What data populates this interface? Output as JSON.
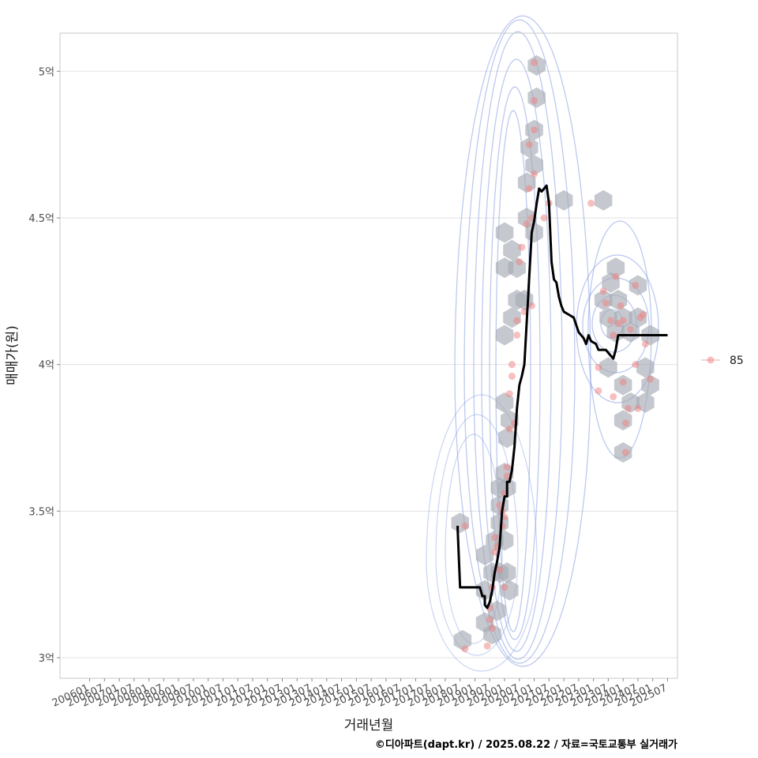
{
  "chart_data": {
    "type": "scatter",
    "xlabel": "거래년월",
    "ylabel": "매매가(원)",
    "caption": "©디아파트(dapt.kr) / 2025.08.22 / 자료=국토교통부 실거래가",
    "x_ticks": [
      "200601",
      "200607",
      "200701",
      "200707",
      "200801",
      "200807",
      "200901",
      "200907",
      "201001",
      "201007",
      "201101",
      "201107",
      "201201",
      "201207",
      "201301",
      "201307",
      "201401",
      "201407",
      "201501",
      "201507",
      "201601",
      "201607",
      "201701",
      "201707",
      "201801",
      "201807",
      "201901",
      "201907",
      "202001",
      "202007",
      "202101",
      "202107",
      "202201",
      "202207",
      "202301",
      "202307",
      "202401",
      "202407",
      "202501",
      "202507"
    ],
    "y_ticks": [
      {
        "value": 3.0,
        "label": "3억"
      },
      {
        "value": 3.5,
        "label": "3.5억"
      },
      {
        "value": 4.0,
        "label": "4억"
      },
      {
        "value": 4.5,
        "label": "4.5억"
      },
      {
        "value": 5.0,
        "label": "5억"
      }
    ],
    "ylim": [
      2.93,
      5.13
    ],
    "xlim_months": [
      "200501",
      "202511"
    ],
    "grid": true,
    "legend": {
      "position": "right",
      "entries": [
        {
          "label": "85",
          "color": "#f08080"
        }
      ]
    },
    "colors": {
      "points": "#f08080",
      "hex": "#a6aab4",
      "contour": "#7b96e0",
      "trend": "#000000"
    },
    "points": [
      {
        "x": "2018-09",
        "y": 3.45
      },
      {
        "x": "2018-09",
        "y": 3.03
      },
      {
        "x": "2019-06",
        "y": 3.04
      },
      {
        "x": "2019-07",
        "y": 3.17
      },
      {
        "x": "2019-07",
        "y": 3.13
      },
      {
        "x": "2019-08",
        "y": 3.1
      },
      {
        "x": "2019-08",
        "y": 3.24
      },
      {
        "x": "2019-09",
        "y": 3.36
      },
      {
        "x": "2019-09",
        "y": 3.41
      },
      {
        "x": "2019-10",
        "y": 3.38
      },
      {
        "x": "2019-11",
        "y": 3.3
      },
      {
        "x": "2019-11",
        "y": 3.52
      },
      {
        "x": "2019-12",
        "y": 3.45
      },
      {
        "x": "2019-12",
        "y": 3.5
      },
      {
        "x": "2020-01",
        "y": 3.48
      },
      {
        "x": "2020-01",
        "y": 3.56
      },
      {
        "x": "2020-01",
        "y": 3.24
      },
      {
        "x": "2020-02",
        "y": 3.62
      },
      {
        "x": "2020-02",
        "y": 3.65
      },
      {
        "x": "2020-03",
        "y": 3.78
      },
      {
        "x": "2020-03",
        "y": 3.9
      },
      {
        "x": "2020-04",
        "y": 3.96
      },
      {
        "x": "2020-04",
        "y": 4.0
      },
      {
        "x": "2020-05",
        "y": 3.8
      },
      {
        "x": "2020-06",
        "y": 4.1
      },
      {
        "x": "2020-06",
        "y": 4.15
      },
      {
        "x": "2020-07",
        "y": 4.35
      },
      {
        "x": "2020-08",
        "y": 4.4
      },
      {
        "x": "2020-09",
        "y": 4.18
      },
      {
        "x": "2020-10",
        "y": 4.48
      },
      {
        "x": "2020-11",
        "y": 4.6
      },
      {
        "x": "2020-11",
        "y": 4.75
      },
      {
        "x": "2020-12",
        "y": 4.2
      },
      {
        "x": "2020-12",
        "y": 4.5
      },
      {
        "x": "2021-01",
        "y": 4.65
      },
      {
        "x": "2021-01",
        "y": 4.8
      },
      {
        "x": "2021-01",
        "y": 4.9
      },
      {
        "x": "2021-01",
        "y": 5.03
      },
      {
        "x": "2021-05",
        "y": 4.5
      },
      {
        "x": "2021-07",
        "y": 4.55
      },
      {
        "x": "2022-12",
        "y": 4.55
      },
      {
        "x": "2023-03",
        "y": 3.99
      },
      {
        "x": "2023-03",
        "y": 3.91
      },
      {
        "x": "2023-05",
        "y": 4.25
      },
      {
        "x": "2023-06",
        "y": 4.21
      },
      {
        "x": "2023-08",
        "y": 4.15
      },
      {
        "x": "2023-09",
        "y": 4.1
      },
      {
        "x": "2023-09",
        "y": 3.89
      },
      {
        "x": "2023-10",
        "y": 4.3
      },
      {
        "x": "2023-11",
        "y": 4.14
      },
      {
        "x": "2023-12",
        "y": 4.2
      },
      {
        "x": "2024-01",
        "y": 3.94
      },
      {
        "x": "2024-01",
        "y": 4.15
      },
      {
        "x": "2024-02",
        "y": 3.7
      },
      {
        "x": "2024-02",
        "y": 3.8
      },
      {
        "x": "2024-03",
        "y": 3.85
      },
      {
        "x": "2024-04",
        "y": 4.12
      },
      {
        "x": "2024-06",
        "y": 4.27
      },
      {
        "x": "2024-06",
        "y": 4.0
      },
      {
        "x": "2024-07",
        "y": 3.85
      },
      {
        "x": "2024-08",
        "y": 4.16
      },
      {
        "x": "2024-09",
        "y": 4.17
      },
      {
        "x": "2024-10",
        "y": 4.07
      },
      {
        "x": "2024-12",
        "y": 3.95
      }
    ],
    "hexbins": [
      {
        "x": "2018-07",
        "y": 3.46
      },
      {
        "x": "2018-08",
        "y": 3.06
      },
      {
        "x": "2019-05",
        "y": 3.35
      },
      {
        "x": "2019-05",
        "y": 3.23
      },
      {
        "x": "2019-05",
        "y": 3.12
      },
      {
        "x": "2019-08",
        "y": 3.29
      },
      {
        "x": "2019-08",
        "y": 3.08
      },
      {
        "x": "2019-09",
        "y": 3.4
      },
      {
        "x": "2019-10",
        "y": 3.16
      },
      {
        "x": "2019-11",
        "y": 3.52
      },
      {
        "x": "2019-11",
        "y": 3.29
      },
      {
        "x": "2019-11",
        "y": 3.58
      },
      {
        "x": "2019-11",
        "y": 3.46
      },
      {
        "x": "2020-01",
        "y": 3.4
      },
      {
        "x": "2020-01",
        "y": 3.63
      },
      {
        "x": "2020-02",
        "y": 3.58
      },
      {
        "x": "2020-02",
        "y": 3.29
      },
      {
        "x": "2020-02",
        "y": 3.75
      },
      {
        "x": "2020-03",
        "y": 3.23
      },
      {
        "x": "2020-01",
        "y": 3.87
      },
      {
        "x": "2020-03",
        "y": 3.81
      },
      {
        "x": "2020-01",
        "y": 4.1
      },
      {
        "x": "2020-04",
        "y": 4.16
      },
      {
        "x": "2020-06",
        "y": 4.22
      },
      {
        "x": "2020-09",
        "y": 4.22
      },
      {
        "x": "2020-01",
        "y": 4.33
      },
      {
        "x": "2020-01",
        "y": 4.45
      },
      {
        "x": "2020-04",
        "y": 4.39
      },
      {
        "x": "2020-06",
        "y": 4.33
      },
      {
        "x": "2020-10",
        "y": 4.5
      },
      {
        "x": "2021-01",
        "y": 4.45
      },
      {
        "x": "2020-10",
        "y": 4.62
      },
      {
        "x": "2021-01",
        "y": 4.68
      },
      {
        "x": "2020-11",
        "y": 4.74
      },
      {
        "x": "2021-01",
        "y": 4.8
      },
      {
        "x": "2021-02",
        "y": 4.91
      },
      {
        "x": "2021-02",
        "y": 5.02
      },
      {
        "x": "2022-01",
        "y": 4.56
      },
      {
        "x": "2023-05",
        "y": 4.56
      },
      {
        "x": "2023-05",
        "y": 4.22
      },
      {
        "x": "2023-08",
        "y": 4.28
      },
      {
        "x": "2023-10",
        "y": 4.33
      },
      {
        "x": "2023-07",
        "y": 4.16
      },
      {
        "x": "2023-10",
        "y": 4.11
      },
      {
        "x": "2023-11",
        "y": 4.22
      },
      {
        "x": "2024-01",
        "y": 4.16
      },
      {
        "x": "2024-07",
        "y": 4.27
      },
      {
        "x": "2024-07",
        "y": 4.16
      },
      {
        "x": "2024-04",
        "y": 4.11
      },
      {
        "x": "2023-07",
        "y": 3.99
      },
      {
        "x": "2024-01",
        "y": 3.93
      },
      {
        "x": "2024-04",
        "y": 3.87
      },
      {
        "x": "2024-01",
        "y": 3.81
      },
      {
        "x": "2024-01",
        "y": 3.7
      },
      {
        "x": "2024-10",
        "y": 3.99
      },
      {
        "x": "2024-10",
        "y": 3.87
      },
      {
        "x": "2024-12",
        "y": 3.93
      },
      {
        "x": "2024-12",
        "y": 4.1
      }
    ],
    "series": [
      {
        "type": "line",
        "points": [
          {
            "x": "2018-06",
            "y": 3.45
          },
          {
            "x": "2018-06",
            "y": 3.44
          },
          {
            "x": "2018-07",
            "y": 3.24
          },
          {
            "x": "2019-03",
            "y": 3.24
          },
          {
            "x": "2019-04",
            "y": 3.21
          },
          {
            "x": "2019-05",
            "y": 3.21
          },
          {
            "x": "2019-05",
            "y": 3.18
          },
          {
            "x": "2019-06",
            "y": 3.17
          },
          {
            "x": "2019-07",
            "y": 3.19
          },
          {
            "x": "2019-08",
            "y": 3.23
          },
          {
            "x": "2019-09",
            "y": 3.29
          },
          {
            "x": "2019-10",
            "y": 3.33
          },
          {
            "x": "2019-11",
            "y": 3.38
          },
          {
            "x": "2019-12",
            "y": 3.5
          },
          {
            "x": "2020-01",
            "y": 3.55
          },
          {
            "x": "2020-02",
            "y": 3.55
          },
          {
            "x": "2020-02",
            "y": 3.6
          },
          {
            "x": "2020-03",
            "y": 3.6
          },
          {
            "x": "2020-04",
            "y": 3.64
          },
          {
            "x": "2020-05",
            "y": 3.72
          },
          {
            "x": "2020-06",
            "y": 3.85
          },
          {
            "x": "2020-07",
            "y": 3.93
          },
          {
            "x": "2020-08",
            "y": 3.96
          },
          {
            "x": "2020-09",
            "y": 4.0
          },
          {
            "x": "2020-10",
            "y": 4.15
          },
          {
            "x": "2020-11",
            "y": 4.3
          },
          {
            "x": "2020-12",
            "y": 4.45
          },
          {
            "x": "2021-01",
            "y": 4.49
          },
          {
            "x": "2021-02",
            "y": 4.55
          },
          {
            "x": "2021-03",
            "y": 4.6
          },
          {
            "x": "2021-04",
            "y": 4.59
          },
          {
            "x": "2021-05",
            "y": 4.6
          },
          {
            "x": "2021-06",
            "y": 4.61
          },
          {
            "x": "2021-07",
            "y": 4.55
          },
          {
            "x": "2021-08",
            "y": 4.35
          },
          {
            "x": "2021-09",
            "y": 4.29
          },
          {
            "x": "2021-10",
            "y": 4.28
          },
          {
            "x": "2021-11",
            "y": 4.23
          },
          {
            "x": "2021-12",
            "y": 4.2
          },
          {
            "x": "2022-01",
            "y": 4.18
          },
          {
            "x": "2022-03",
            "y": 4.17
          },
          {
            "x": "2022-05",
            "y": 4.16
          },
          {
            "x": "2022-07",
            "y": 4.11
          },
          {
            "x": "2022-09",
            "y": 4.09
          },
          {
            "x": "2022-10",
            "y": 4.07
          },
          {
            "x": "2022-11",
            "y": 4.1
          },
          {
            "x": "2022-12",
            "y": 4.08
          },
          {
            "x": "2023-02",
            "y": 4.07
          },
          {
            "x": "2023-03",
            "y": 4.05
          },
          {
            "x": "2023-06",
            "y": 4.05
          },
          {
            "x": "2023-08",
            "y": 4.03
          },
          {
            "x": "2023-09",
            "y": 4.02
          },
          {
            "x": "2023-10",
            "y": 4.05
          },
          {
            "x": "2023-11",
            "y": 4.1
          },
          {
            "x": "2025-07",
            "y": 4.1
          }
        ]
      }
    ]
  }
}
